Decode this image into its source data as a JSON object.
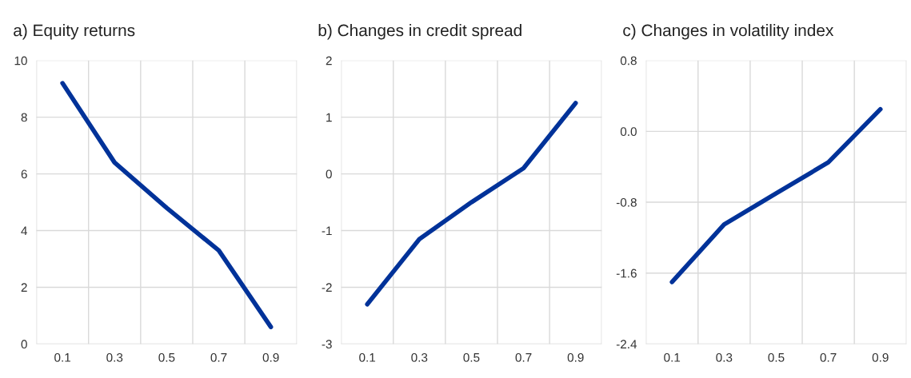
{
  "chart_data": [
    {
      "type": "line",
      "title": "a) Equity returns",
      "categories": [
        "0.1",
        "0.3",
        "0.5",
        "0.7",
        "0.9"
      ],
      "series": [
        {
          "color": "#003299",
          "values": [
            9.2,
            6.4,
            4.8,
            3.3,
            0.6
          ]
        }
      ],
      "ylim": [
        0,
        10
      ],
      "yticks": [
        0,
        2,
        4,
        6,
        8,
        10
      ],
      "grid": true,
      "legend": false
    },
    {
      "type": "line",
      "title": "b) Changes in credit spread",
      "categories": [
        "0.1",
        "0.3",
        "0.5",
        "0.7",
        "0.9"
      ],
      "series": [
        {
          "color": "#003299",
          "values": [
            -2.3,
            -1.15,
            -0.5,
            0.1,
            1.25
          ]
        }
      ],
      "ylim": [
        -3,
        2
      ],
      "yticks": [
        -3,
        -2,
        -1,
        0,
        1,
        2
      ],
      "grid": true,
      "legend": false
    },
    {
      "type": "line",
      "title": "c) Changes in volatility index",
      "categories": [
        "0.1",
        "0.3",
        "0.5",
        "0.7",
        "0.9"
      ],
      "series": [
        {
          "color": "#003299",
          "values": [
            -1.7,
            -1.05,
            -0.7,
            -0.35,
            0.25
          ]
        }
      ],
      "ylim": [
        -2.4,
        0.8
      ],
      "yticks": [
        {
          "value": -2.4,
          "label": "-2.4"
        },
        {
          "value": -1.6,
          "label": "-1.6"
        },
        {
          "value": -0.8,
          "label": "-0.8"
        },
        {
          "value": 0,
          "label": "0.0"
        },
        {
          "value": 0.8,
          "label": "0.8"
        }
      ],
      "grid": true,
      "legend": false
    }
  ]
}
